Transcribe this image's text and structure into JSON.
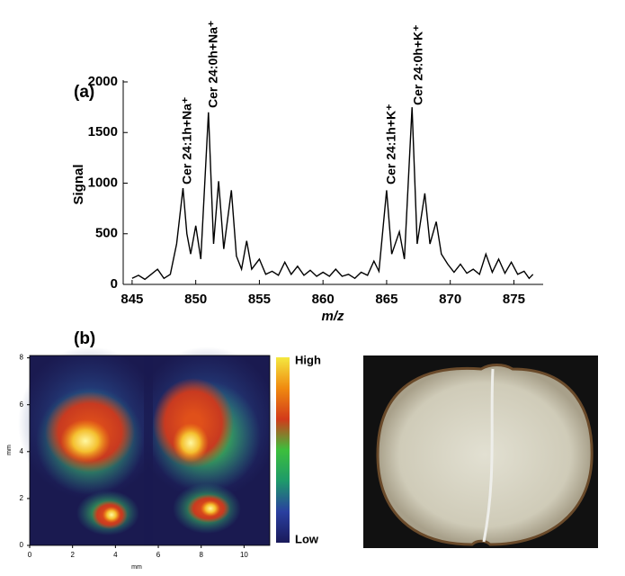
{
  "chart_data": [
    {
      "type": "line",
      "panel_label": "(a)",
      "xlabel": "m/z",
      "ylabel": "Signal",
      "color": "#000000",
      "annotations": [
        "Cer 24:1h+Na⁺",
        "Cer 24:0h+Na⁺",
        "Cer 24:1h+K⁺",
        "Cer 24:0h+K⁺"
      ],
      "x": [
        845.0,
        845.5,
        846,
        846.5,
        847,
        847.5,
        848,
        848.5,
        849,
        849.3,
        849.6,
        850,
        850.4,
        851,
        851.4,
        851.8,
        852.2,
        852.8,
        853.2,
        853.6,
        854,
        854.4,
        855,
        855.5,
        856,
        856.5,
        857,
        857.5,
        858,
        858.5,
        859,
        859.5,
        860,
        860.5,
        861,
        861.5,
        862,
        862.5,
        863,
        863.5,
        864,
        864.4,
        865,
        865.4,
        866,
        866.4,
        867,
        867.4,
        868,
        868.4,
        868.9,
        869.3,
        869.8,
        870.3,
        870.8,
        871.3,
        871.8,
        872.3,
        872.8,
        873.3,
        873.8,
        874.3,
        874.8,
        875.3,
        875.8,
        876.2,
        876.5
      ],
      "values": [
        60,
        90,
        50,
        100,
        150,
        60,
        100,
        400,
        950,
        500,
        300,
        580,
        250,
        1700,
        400,
        1020,
        350,
        930,
        280,
        150,
        430,
        150,
        250,
        100,
        130,
        90,
        220,
        100,
        180,
        90,
        140,
        80,
        120,
        80,
        150,
        80,
        100,
        60,
        120,
        90,
        230,
        130,
        930,
        300,
        520,
        250,
        1750,
        400,
        900,
        400,
        620,
        300,
        200,
        120,
        200,
        110,
        150,
        100,
        300,
        120,
        250,
        110,
        220,
        100,
        130,
        60,
        100
      ],
      "xlim": [
        844.3,
        877.3
      ],
      "ylim": [
        0,
        2000
      ],
      "xticks": [
        845,
        850,
        855,
        860,
        865,
        870,
        875
      ],
      "yticks": [
        0,
        500,
        1000,
        1500,
        2000
      ]
    },
    {
      "type": "image",
      "panel_label": "(b)",
      "xlabel": "mm",
      "ylabel": "mm",
      "xlim": [
        0,
        11.2
      ],
      "ylim": [
        0,
        8.1
      ],
      "xticks": [
        0,
        2,
        4,
        6,
        8,
        10
      ],
      "yticks": [
        0,
        2,
        4,
        6,
        8
      ],
      "colorbar_labels": [
        "High",
        "Low"
      ],
      "colormap": [
        "#1a1a5a",
        "#2a3fa0",
        "#1e9a6a",
        "#3cbf3c",
        "#d23a1a",
        "#f08a10",
        "#f4e840"
      ]
    }
  ]
}
